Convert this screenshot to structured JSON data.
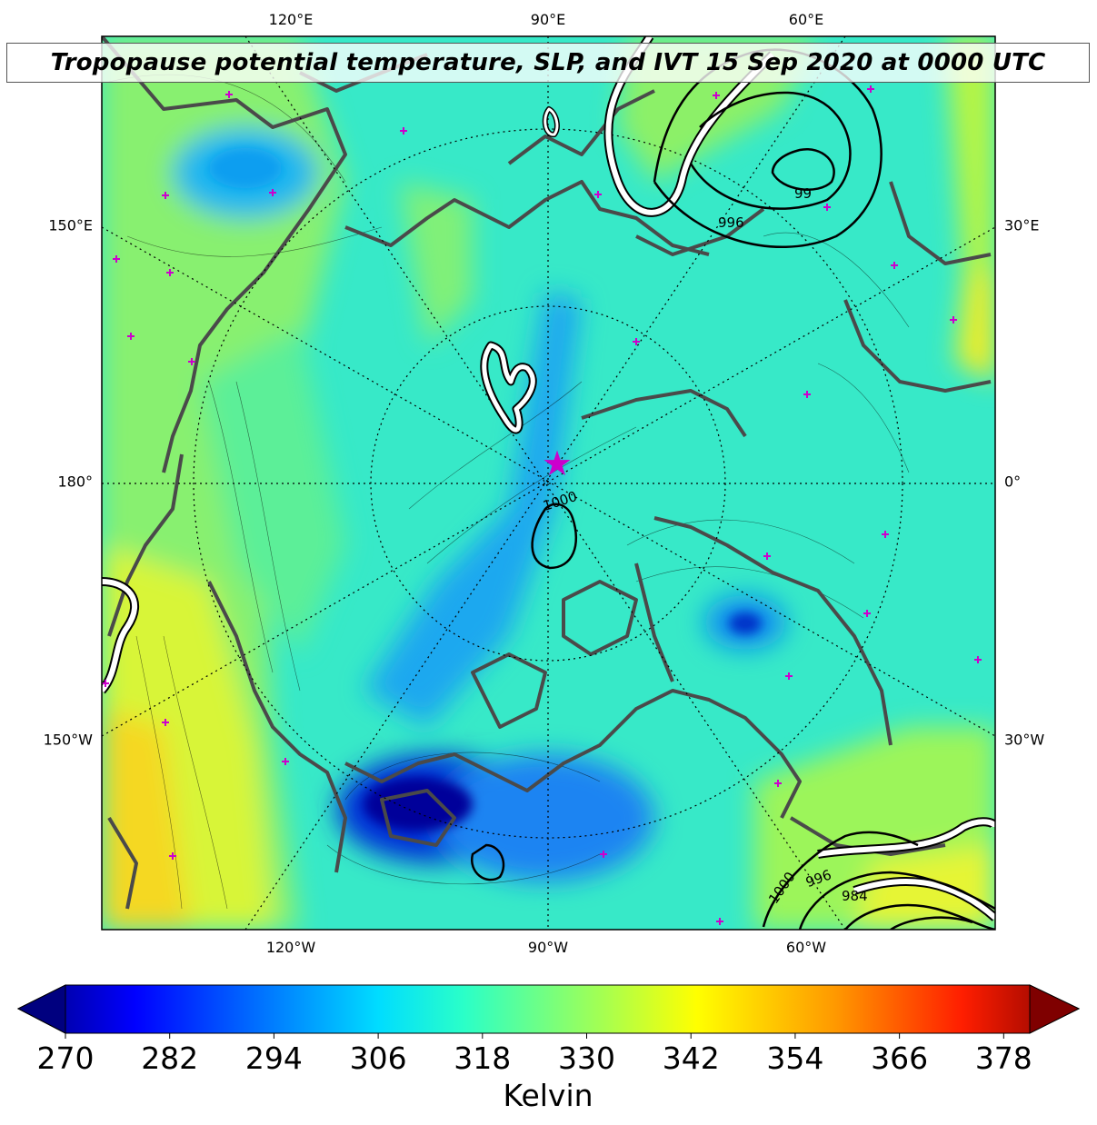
{
  "title": "Tropopause potential temperature, SLP, and IVT 15 Sep 2020 at 0000 UTC",
  "map": {
    "top_lon_labels": [
      "120°E",
      "90°E",
      "60°E"
    ],
    "bottom_lon_labels": [
      "120°W",
      "90°W",
      "60°W"
    ],
    "left_labels": [
      "150°E",
      "180°",
      "150°W"
    ],
    "right_labels": [
      "30°E",
      "0°",
      "30°W"
    ],
    "slp_contour_labels": [
      "1000",
      "996",
      "996",
      "984",
      "1000",
      "99"
    ]
  },
  "colorbar": {
    "ticks": [
      "270",
      "282",
      "294",
      "306",
      "318",
      "330",
      "342",
      "354",
      "366",
      "378"
    ],
    "label": "Kelvin",
    "vmin": 270,
    "vmax": 381,
    "colormap": "jet"
  },
  "colors": {
    "coast": "#4a4a4a",
    "marker": "#cc00cc",
    "ivt_outline": "#000000",
    "ivt_fill": "#ffffff"
  }
}
